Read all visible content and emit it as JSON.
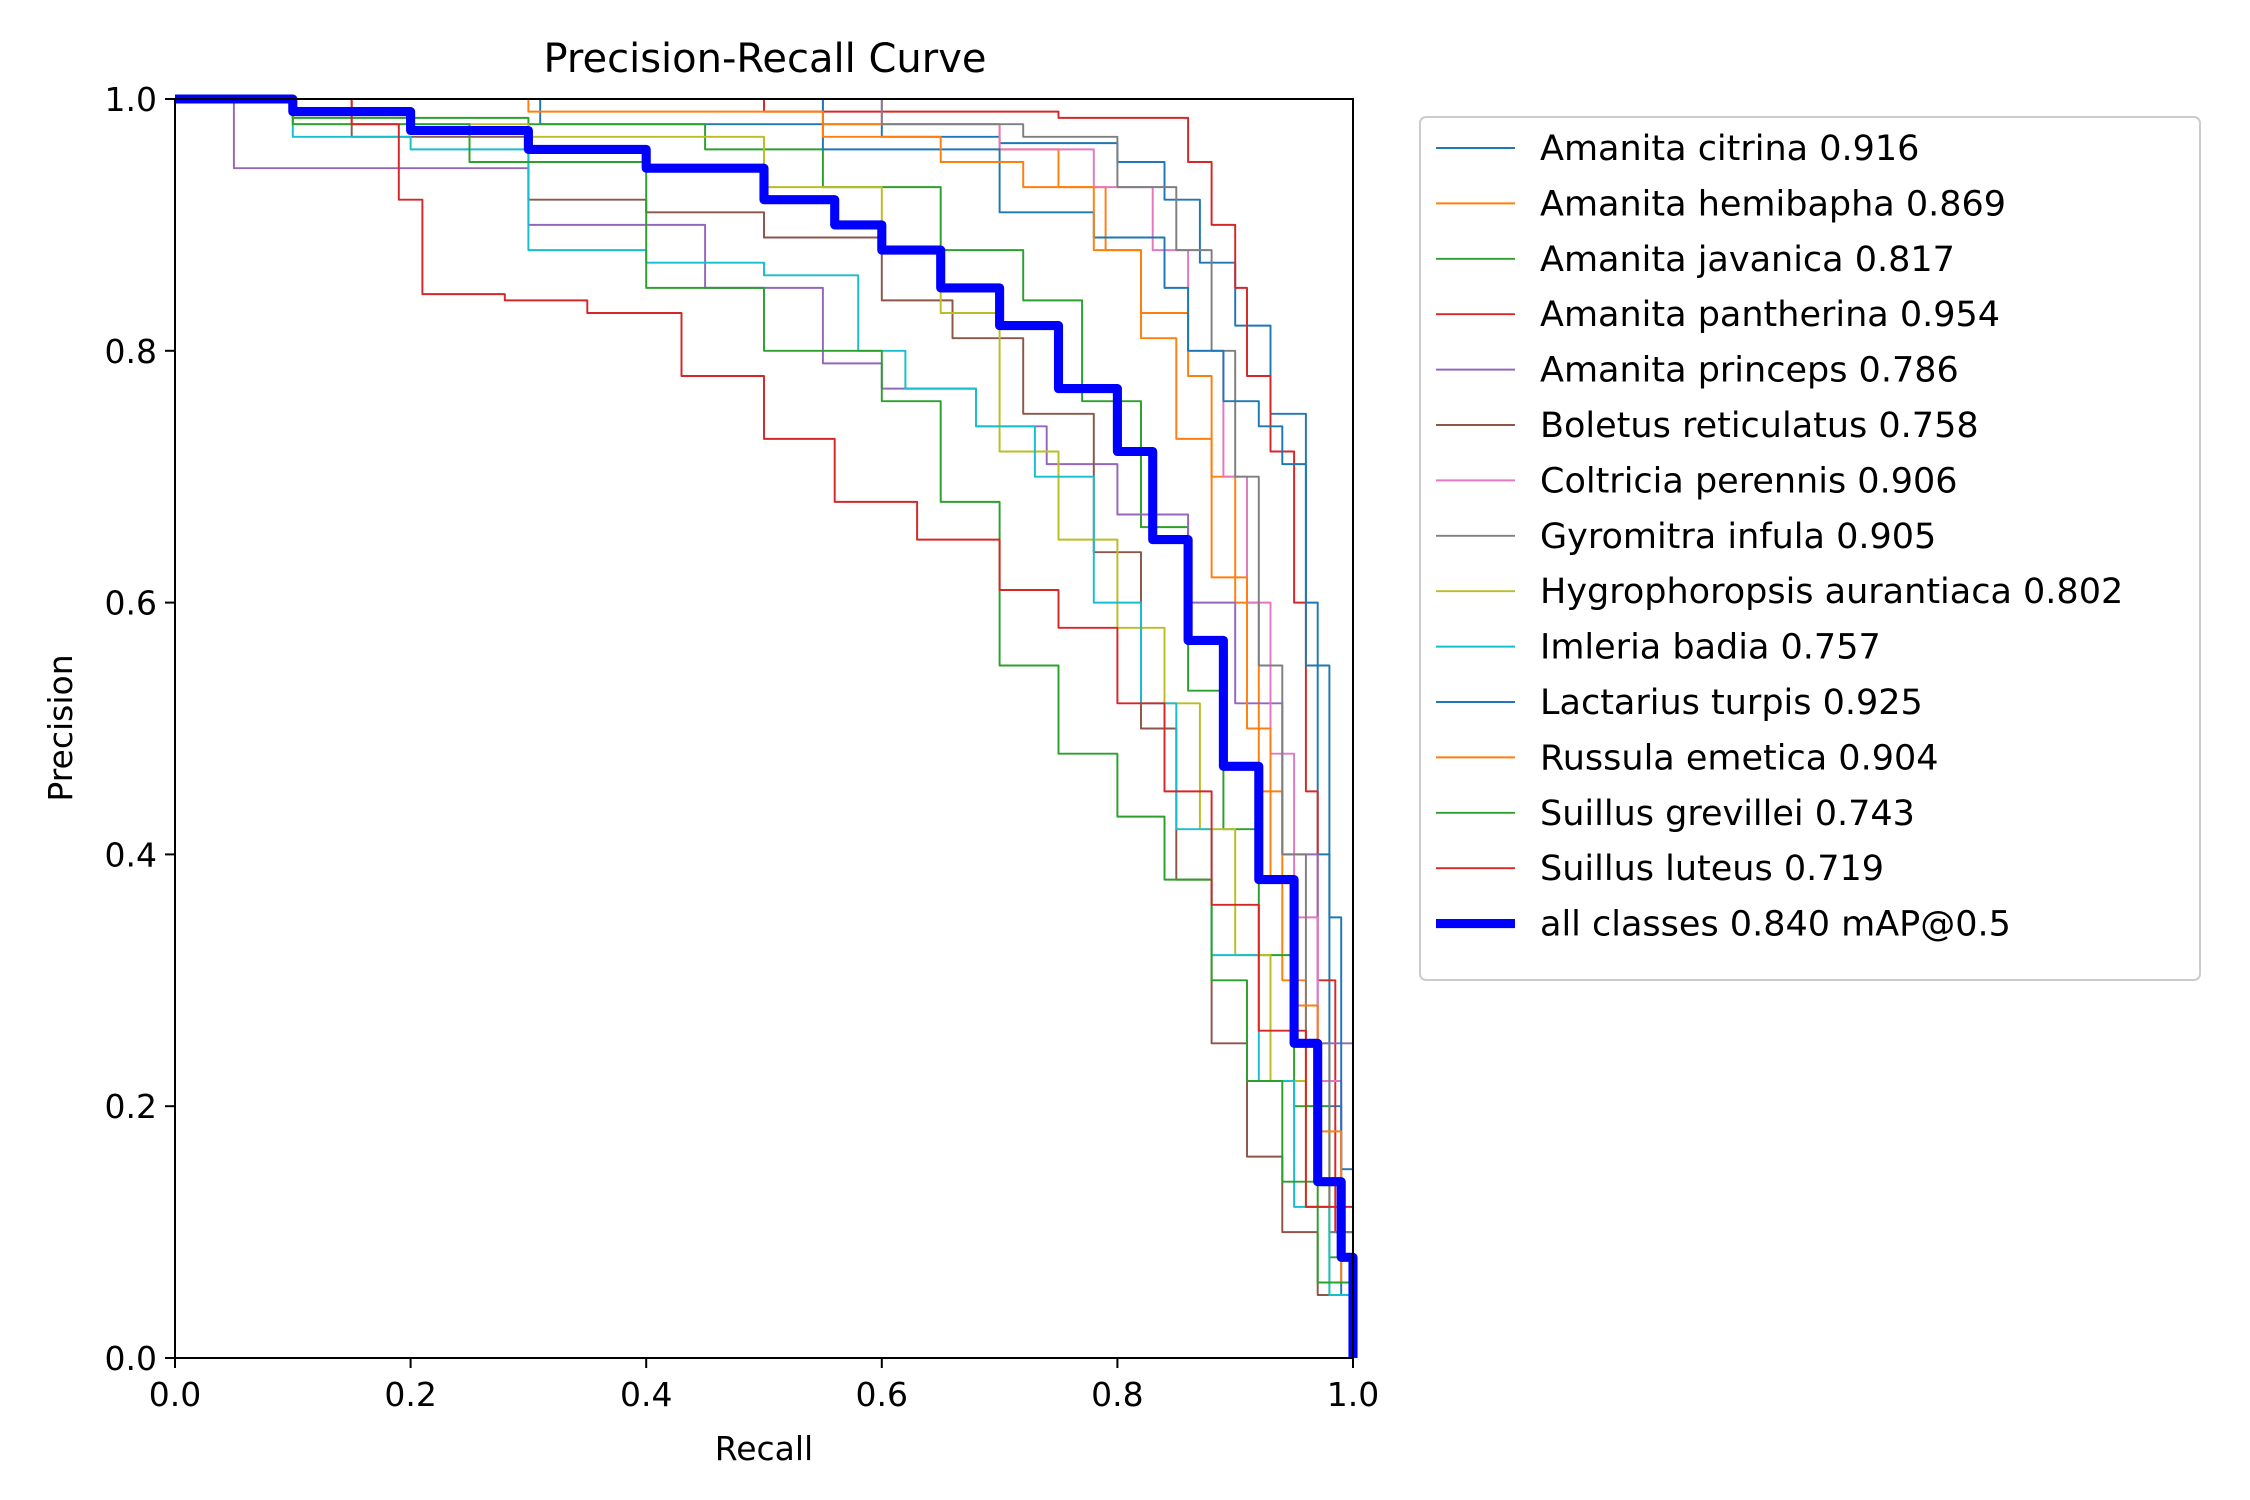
{
  "chart_data": {
    "type": "line",
    "title": "Precision-Recall Curve",
    "xlabel": "Recall",
    "ylabel": "Precision",
    "xlim": [
      0.0,
      1.0
    ],
    "ylim": [
      0.0,
      1.0
    ],
    "x_ticks": [
      "0.0",
      "0.2",
      "0.4",
      "0.6",
      "0.8",
      "1.0"
    ],
    "y_ticks": [
      "0.0",
      "0.2",
      "0.4",
      "0.6",
      "0.8",
      "1.0"
    ],
    "grid": false,
    "legend_position": "outside-right",
    "series": [
      {
        "name": "Amanita citrina 0.916",
        "color": "#1f77b4",
        "width": 1.5,
        "x": [
          0,
          0.3,
          0.31,
          0.6,
          0.7,
          0.8,
          0.84,
          0.87,
          0.9,
          0.93,
          0.96,
          0.97,
          0.98,
          0.99,
          1.0
        ],
        "y": [
          1.0,
          1.0,
          0.98,
          0.97,
          0.965,
          0.95,
          0.92,
          0.87,
          0.82,
          0.75,
          0.6,
          0.4,
          0.2,
          0.05,
          0.0
        ]
      },
      {
        "name": "Amanita hemibapha 0.869",
        "color": "#ff7f0e",
        "width": 1.5,
        "x": [
          0,
          0.4,
          0.55,
          0.7,
          0.75,
          0.79,
          0.82,
          0.86,
          0.88,
          0.9,
          0.92,
          0.94,
          0.96,
          0.98,
          1.0
        ],
        "y": [
          1.0,
          1.0,
          0.98,
          0.96,
          0.93,
          0.88,
          0.83,
          0.78,
          0.7,
          0.6,
          0.45,
          0.3,
          0.2,
          0.1,
          0.0
        ]
      },
      {
        "name": "Amanita javanica 0.817",
        "color": "#2ca02c",
        "width": 1.5,
        "x": [
          0,
          0.1,
          0.3,
          0.45,
          0.55,
          0.65,
          0.72,
          0.77,
          0.82,
          0.86,
          0.89,
          0.92,
          0.95,
          0.98,
          1.0
        ],
        "y": [
          1.0,
          0.985,
          0.98,
          0.96,
          0.93,
          0.88,
          0.84,
          0.76,
          0.66,
          0.53,
          0.42,
          0.32,
          0.2,
          0.08,
          0.0
        ]
      },
      {
        "name": "Amanita pantherina 0.954",
        "color": "#d62728",
        "width": 1.5,
        "x": [
          0,
          0.5,
          0.75,
          0.83,
          0.86,
          0.88,
          0.9,
          0.91,
          0.93,
          0.95,
          0.96,
          0.97,
          0.985,
          1.0
        ],
        "y": [
          1.0,
          0.99,
          0.985,
          0.985,
          0.95,
          0.9,
          0.85,
          0.78,
          0.72,
          0.6,
          0.45,
          0.3,
          0.1,
          0.0
        ]
      },
      {
        "name": "Amanita princeps 0.786",
        "color": "#9467bd",
        "width": 1.5,
        "x": [
          0,
          0.05,
          0.2,
          0.3,
          0.45,
          0.55,
          0.6,
          0.68,
          0.74,
          0.8,
          0.86,
          0.9,
          0.94,
          0.97,
          1.0
        ],
        "y": [
          1.0,
          0.945,
          0.945,
          0.9,
          0.85,
          0.79,
          0.77,
          0.74,
          0.71,
          0.67,
          0.6,
          0.52,
          0.4,
          0.25,
          0.0
        ]
      },
      {
        "name": "Boletus reticulatus 0.758",
        "color": "#8c564b",
        "width": 1.5,
        "x": [
          0,
          0.15,
          0.3,
          0.4,
          0.5,
          0.6,
          0.66,
          0.72,
          0.78,
          0.82,
          0.85,
          0.88,
          0.91,
          0.94,
          0.97,
          1.0
        ],
        "y": [
          1.0,
          0.97,
          0.92,
          0.91,
          0.89,
          0.84,
          0.81,
          0.75,
          0.64,
          0.5,
          0.38,
          0.25,
          0.16,
          0.1,
          0.05,
          0.0
        ]
      },
      {
        "name": "Coltricia perennis 0.906",
        "color": "#e377c2",
        "width": 1.5,
        "x": [
          0,
          0.4,
          0.6,
          0.7,
          0.78,
          0.83,
          0.86,
          0.89,
          0.91,
          0.93,
          0.95,
          0.97,
          0.99,
          1.0
        ],
        "y": [
          1.0,
          1.0,
          0.98,
          0.96,
          0.93,
          0.88,
          0.8,
          0.7,
          0.6,
          0.48,
          0.35,
          0.22,
          0.08,
          0.0
        ]
      },
      {
        "name": "Gyromitra infula 0.905",
        "color": "#7f7f7f",
        "width": 1.5,
        "x": [
          0,
          0.45,
          0.6,
          0.72,
          0.8,
          0.85,
          0.88,
          0.9,
          0.92,
          0.94,
          0.96,
          0.98,
          1.0
        ],
        "y": [
          1.0,
          1.0,
          0.98,
          0.97,
          0.93,
          0.88,
          0.8,
          0.7,
          0.55,
          0.4,
          0.25,
          0.1,
          0.0
        ]
      },
      {
        "name": "Hygrophoropsis aurantiaca 0.802",
        "color": "#bcbd22",
        "width": 1.5,
        "x": [
          0,
          0.1,
          0.3,
          0.5,
          0.6,
          0.65,
          0.7,
          0.75,
          0.8,
          0.84,
          0.87,
          0.9,
          0.93,
          0.96,
          0.98,
          1.0
        ],
        "y": [
          1.0,
          0.98,
          0.97,
          0.93,
          0.88,
          0.83,
          0.72,
          0.65,
          0.58,
          0.52,
          0.42,
          0.32,
          0.22,
          0.12,
          0.05,
          0.0
        ]
      },
      {
        "name": "Imleria badia 0.757",
        "color": "#17becf",
        "width": 1.5,
        "x": [
          0,
          0.1,
          0.2,
          0.3,
          0.4,
          0.5,
          0.58,
          0.62,
          0.68,
          0.73,
          0.78,
          0.82,
          0.85,
          0.88,
          0.92,
          0.95,
          0.98,
          1.0
        ],
        "y": [
          1.0,
          0.97,
          0.96,
          0.88,
          0.87,
          0.86,
          0.8,
          0.77,
          0.74,
          0.7,
          0.6,
          0.52,
          0.42,
          0.32,
          0.22,
          0.12,
          0.05,
          0.0
        ]
      },
      {
        "name": "Lactarius turpis 0.925",
        "color": "#1f77b4",
        "width": 1.5,
        "x": [
          0,
          0.35,
          0.55,
          0.7,
          0.78,
          0.84,
          0.86,
          0.89,
          0.92,
          0.94,
          0.96,
          0.98,
          0.99,
          1.0
        ],
        "y": [
          1.0,
          1.0,
          0.96,
          0.91,
          0.89,
          0.85,
          0.8,
          0.76,
          0.74,
          0.71,
          0.55,
          0.35,
          0.15,
          0.0
        ]
      },
      {
        "name": "Russula emetica 0.904",
        "color": "#ff7f0e",
        "width": 1.5,
        "x": [
          0,
          0.3,
          0.55,
          0.65,
          0.72,
          0.78,
          0.82,
          0.85,
          0.88,
          0.91,
          0.93,
          0.95,
          0.97,
          0.99,
          1.0
        ],
        "y": [
          1.0,
          0.99,
          0.97,
          0.95,
          0.93,
          0.88,
          0.81,
          0.73,
          0.62,
          0.5,
          0.38,
          0.28,
          0.18,
          0.06,
          0.0
        ]
      },
      {
        "name": "Suillus grevillei 0.743",
        "color": "#2ca02c",
        "width": 1.5,
        "x": [
          0,
          0.1,
          0.25,
          0.4,
          0.5,
          0.6,
          0.65,
          0.7,
          0.75,
          0.8,
          0.84,
          0.88,
          0.91,
          0.94,
          0.97,
          1.0
        ],
        "y": [
          1.0,
          0.98,
          0.95,
          0.85,
          0.8,
          0.76,
          0.68,
          0.55,
          0.48,
          0.43,
          0.38,
          0.3,
          0.22,
          0.14,
          0.06,
          0.0
        ]
      },
      {
        "name": "Suillus luteus 0.719",
        "color": "#d62728",
        "width": 1.5,
        "x": [
          0,
          0.15,
          0.19,
          0.21,
          0.28,
          0.35,
          0.43,
          0.5,
          0.56,
          0.63,
          0.7,
          0.75,
          0.8,
          0.84,
          0.88,
          0.92,
          0.96,
          1.0
        ],
        "y": [
          1.0,
          0.98,
          0.92,
          0.845,
          0.84,
          0.83,
          0.78,
          0.73,
          0.68,
          0.65,
          0.61,
          0.58,
          0.52,
          0.45,
          0.36,
          0.26,
          0.12,
          0.0
        ]
      },
      {
        "name": "all classes 0.840 mAP@0.5",
        "color": "#0000ff",
        "width": 7,
        "x": [
          0,
          0.1,
          0.2,
          0.3,
          0.4,
          0.5,
          0.56,
          0.6,
          0.65,
          0.7,
          0.75,
          0.8,
          0.83,
          0.86,
          0.89,
          0.92,
          0.95,
          0.97,
          0.99,
          1.0
        ],
        "y": [
          1.0,
          0.99,
          0.975,
          0.96,
          0.945,
          0.92,
          0.9,
          0.88,
          0.85,
          0.82,
          0.77,
          0.72,
          0.65,
          0.57,
          0.47,
          0.38,
          0.25,
          0.14,
          0.08,
          0.0
        ]
      }
    ]
  }
}
